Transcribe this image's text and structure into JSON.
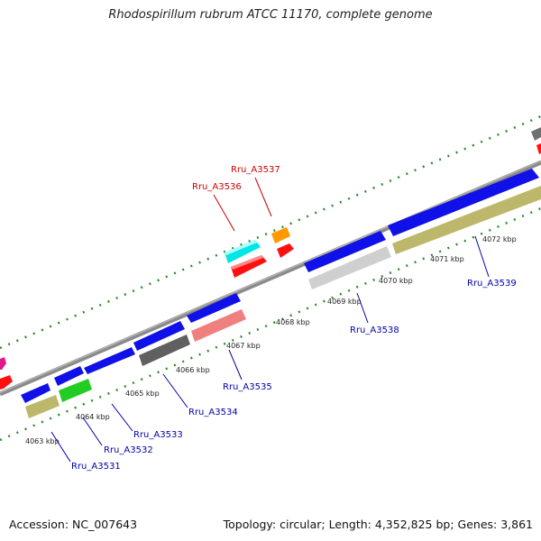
{
  "title": "Rhodospirillum rubrum ATCC 11170, complete genome",
  "footer": {
    "accession": "Accession: NC_007643",
    "summary": "Topology: circular; Length: 4,352,825 bp; Genes: 3,861"
  },
  "colors": {
    "backbone": "#8a8a8a",
    "tick": "#2e8b2e",
    "forward_label": "#cc0000",
    "reverse_label": "#0000aa"
  },
  "kbp_ticks": [
    {
      "label": "4063 kbp"
    },
    {
      "label": "4064 kbp"
    },
    {
      "label": "4065 kbp"
    },
    {
      "label": "4066 kbp"
    },
    {
      "label": "4067 kbp"
    },
    {
      "label": "4068 kbp"
    },
    {
      "label": "4069 kbp"
    },
    {
      "label": "4070 kbp"
    },
    {
      "label": "4071 kbp"
    },
    {
      "label": "4072 kbp"
    }
  ],
  "gene_labels": [
    {
      "text": "Rru_A3531",
      "strand": "reverse"
    },
    {
      "text": "Rru_A3532",
      "strand": "reverse"
    },
    {
      "text": "Rru_A3533",
      "strand": "reverse"
    },
    {
      "text": "Rru_A3534",
      "strand": "reverse"
    },
    {
      "text": "Rru_A3535",
      "strand": "reverse"
    },
    {
      "text": "Rru_A3536",
      "strand": "forward"
    },
    {
      "text": "Rru_A3537",
      "strand": "forward"
    },
    {
      "text": "Rru_A3538",
      "strand": "reverse"
    },
    {
      "text": "Rru_A3539",
      "strand": "reverse"
    }
  ]
}
